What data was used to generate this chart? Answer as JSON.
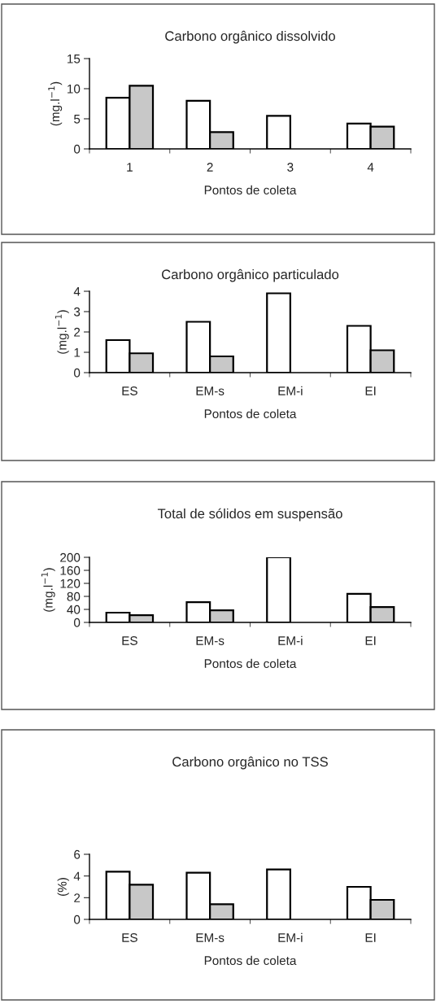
{
  "chart_data": [
    {
      "type": "bar",
      "title": "Carbono orgânico dissolvido",
      "xlabel": "Pontos de coleta",
      "ylabel": "(mg.l$^{−1}$)",
      "categories": [
        "1",
        "2",
        "3",
        "4"
      ],
      "ylim": [
        0,
        15
      ],
      "yticks": [
        0,
        5,
        10,
        15
      ],
      "grid": false,
      "legend": false,
      "series": [
        {
          "color": "#ffffff",
          "values": [
            8.5,
            8,
            5.5,
            4.2
          ]
        },
        {
          "color": "#c8c8c8",
          "values": [
            10.5,
            2.8,
            null,
            3.7
          ]
        }
      ]
    },
    {
      "type": "bar",
      "title": "Carbono orgânico particulado",
      "xlabel": "Pontos de coleta",
      "ylabel": "(mg.l$^{−1}$)",
      "categories": [
        "ES",
        "EM-s",
        "EM-i",
        "EI"
      ],
      "ylim": [
        0,
        4
      ],
      "yticks": [
        0,
        1,
        2,
        3,
        4
      ],
      "grid": false,
      "legend": false,
      "series": [
        {
          "color": "#ffffff",
          "values": [
            1.6,
            2.5,
            3.9,
            2.3
          ]
        },
        {
          "color": "#c8c8c8",
          "values": [
            0.95,
            0.8,
            null,
            1.1
          ]
        }
      ]
    },
    {
      "type": "bar",
      "title": "Total de sólidos em suspensão",
      "xlabel": "Pontos de coleta",
      "ylabel": "(mg.l$^{−1}$)",
      "categories": [
        "ES",
        "EM-s",
        "EM-i",
        "EI"
      ],
      "ylim": [
        0,
        200
      ],
      "yticks": [
        0,
        40,
        80,
        120,
        160,
        200
      ],
      "grid": false,
      "legend": false,
      "series": [
        {
          "color": "#ffffff",
          "values": [
            30,
            62,
            200,
            88
          ]
        },
        {
          "color": "#c8c8c8",
          "values": [
            22,
            37,
            null,
            47
          ]
        }
      ]
    },
    {
      "type": "bar",
      "title": "Carbono orgânico no TSS",
      "xlabel": "Pontos de coleta",
      "ylabel": "(%)",
      "categories": [
        "ES",
        "EM-s",
        "EM-i",
        "EI"
      ],
      "ylim": [
        0,
        6
      ],
      "yticks": [
        0,
        2,
        4,
        6
      ],
      "grid": false,
      "legend": false,
      "series": [
        {
          "color": "#ffffff",
          "values": [
            4.4,
            4.3,
            4.6,
            3.0
          ]
        },
        {
          "color": "#c8c8c8",
          "values": [
            3.2,
            1.4,
            null,
            1.8
          ]
        }
      ]
    }
  ]
}
